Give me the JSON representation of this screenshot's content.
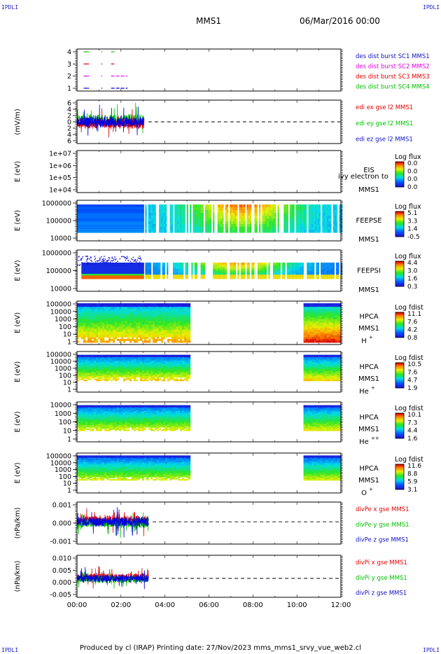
{
  "corners": {
    "label": "IPDLI"
  },
  "header": {
    "spacecraft": "MMS1",
    "date": "06/Mar/2016 00:00"
  },
  "footer": {
    "text": "Produced by cl (IRAP)    Printing date: 27/Nov/2023    mms_mms1_srvy_vue_web2.cl"
  },
  "colors": {
    "red": "#e00000",
    "green": "#00c000",
    "blue": "#0000e0",
    "magenta": "#e000e0",
    "legend_blue": "#1010c0"
  },
  "chart_data": [
    {
      "type": "line",
      "yticks": [
        "4",
        "3",
        "2",
        "1"
      ],
      "legend": [
        {
          "text": "des dist burst SC1 MMS1",
          "color": "#1010c0"
        },
        {
          "text": "des dist burst SC2 MMS2",
          "color": "#e000e0"
        },
        {
          "text": "des dist burst SC3 MMS3",
          "color": "#e00000"
        },
        {
          "text": "des dist burst SC4 MMS4",
          "color": "#00c000"
        }
      ]
    },
    {
      "type": "line",
      "ylabel": "(mV/m)",
      "yticks": [
        "6",
        "4",
        "2",
        "0",
        "2",
        "4",
        "6"
      ],
      "legend": [
        {
          "text": "edi ex gse l2 MMS1",
          "color": "#e00000"
        },
        {
          "text": "edi ey gse l2 MMS1",
          "color": "#00c000"
        },
        {
          "text": "edi ez gse l2 MMS1",
          "color": "#1010c0"
        }
      ]
    },
    {
      "type": "heatmap",
      "ylabel": "E (eV)",
      "yticks": [
        "1e+07",
        "1e+06",
        "1e+05",
        "1e+04"
      ],
      "instrument": "EIS",
      "overlay": "ivy electron to",
      "sc": "MMS1",
      "cbar_title": "Log flux",
      "cbar_ticks": [
        "0.0",
        "0.0",
        "0.0",
        "0.0"
      ]
    },
    {
      "type": "heatmap",
      "ylabel": "E (eV)",
      "yticks": [
        "1000000",
        "100000",
        "10000"
      ],
      "instrument": "FEEPSE",
      "sc": "MMS1",
      "cbar_title": "Log flux",
      "cbar_ticks": [
        "5.1",
        "3.3",
        "1.4",
        "-0.5"
      ]
    },
    {
      "type": "heatmap",
      "ylabel": "E (eV)",
      "yticks": [
        "1000000",
        "100000",
        "10000"
      ],
      "instrument": "FEEPSI",
      "sc": "MMS1",
      "cbar_title": "Log flux",
      "cbar_ticks": [
        "4.4",
        "3.0",
        "1.6",
        "0.3"
      ]
    },
    {
      "type": "heatmap",
      "ylabel": "E (eV)",
      "yticks": [
        "100000",
        "10000",
        "1000",
        "100",
        "10",
        "1"
      ],
      "instrument": "HPCA",
      "sc": "MMS1",
      "species": "H",
      "charge": "+",
      "cbar_title": "Log fdist",
      "cbar_ticks": [
        "11.1",
        "7.6",
        "4.2",
        "0.8"
      ]
    },
    {
      "type": "heatmap",
      "ylabel": "E (eV)",
      "yticks": [
        "100000",
        "10000",
        "1000",
        "100",
        "10",
        "1"
      ],
      "instrument": "HPCA",
      "sc": "MMS1",
      "species": "He",
      "charge": "+",
      "cbar_title": "Log fdist",
      "cbar_ticks": [
        "10.5",
        "7.6",
        "4.7",
        "1.9"
      ]
    },
    {
      "type": "heatmap",
      "ylabel": "E (eV)",
      "yticks": [
        "10000",
        "1000",
        "100",
        "10",
        "1"
      ],
      "instrument": "HPCA",
      "sc": "MMS1",
      "species": "He",
      "charge": "++",
      "cbar_title": "Log fdist",
      "cbar_ticks": [
        "10.1",
        "7.3",
        "4.4",
        "1.6"
      ]
    },
    {
      "type": "heatmap",
      "ylabel": "E (eV)",
      "yticks": [
        "100000",
        "10000",
        "1000",
        "100",
        "10",
        "1"
      ],
      "instrument": "HPCA",
      "sc": "MMS1",
      "species": "O",
      "charge": "+",
      "cbar_title": "Log fdist",
      "cbar_ticks": [
        "11.6",
        "8.8",
        "5.9",
        "3.1"
      ]
    },
    {
      "type": "line",
      "ylabel": "(nPa/km)",
      "yticks": [
        "0.001",
        "0.000",
        "-0.001"
      ],
      "legend": [
        {
          "text": "divPe x gse MMS1",
          "color": "#e00000"
        },
        {
          "text": "divPe y gse MMS1",
          "color": "#00c000"
        },
        {
          "text": "divPe z gse MMS1",
          "color": "#1010c0"
        }
      ]
    },
    {
      "type": "line",
      "ylabel": "(nPa/km)",
      "yticks": [
        "0.010",
        "0.005",
        "0.000",
        "-0.005"
      ],
      "legend": [
        {
          "text": "divPi x gse MMS1",
          "color": "#e00000"
        },
        {
          "text": "divPi y gse MMS1",
          "color": "#00c000"
        },
        {
          "text": "divPi z gse MMS1",
          "color": "#1010c0"
        }
      ]
    }
  ],
  "xaxis": {
    "ticks": [
      "00:00",
      "02:00",
      "04:00",
      "06:00",
      "08:00",
      "10:00",
      "12:00"
    ],
    "xlim": [
      0,
      12
    ]
  }
}
